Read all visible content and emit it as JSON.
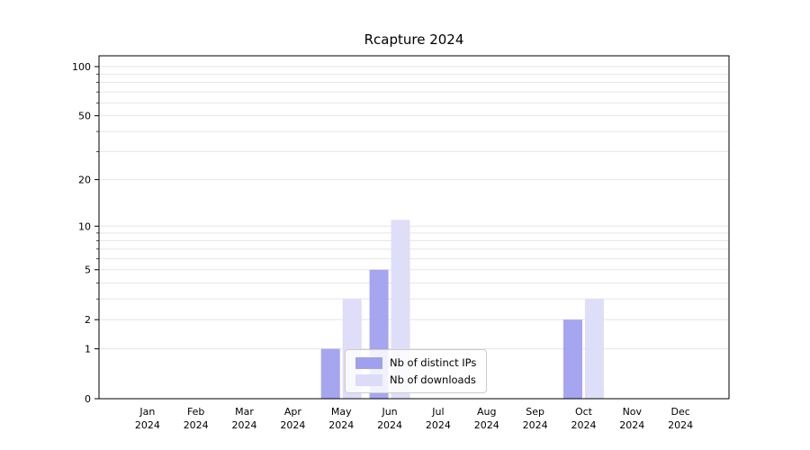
{
  "title": "Rcapture 2024",
  "chart_data": {
    "type": "bar",
    "title": "Rcapture 2024",
    "categories": [
      "Jan",
      "Feb",
      "Mar",
      "Apr",
      "May",
      "Jun",
      "Jul",
      "Aug",
      "Sep",
      "Oct",
      "Nov",
      "Dec"
    ],
    "year_label": "2024",
    "series": [
      {
        "name": "Nb of distinct IPs",
        "color": "#a0a0ef",
        "values": [
          0,
          0,
          0,
          0,
          1,
          5,
          0,
          0,
          0,
          2,
          0,
          0
        ]
      },
      {
        "name": "Nb of downloads",
        "color": "#dcdcf8",
        "values": [
          0,
          0,
          0,
          0,
          3,
          11,
          0,
          0,
          0,
          3,
          0,
          0
        ]
      }
    ],
    "xlabel": "",
    "ylabel": "",
    "y_scale": "log1p",
    "ylim": [
      0,
      117
    ],
    "y_ticks": [
      0,
      1,
      2,
      5,
      10,
      20,
      50,
      100
    ],
    "y_gridlines": [
      1,
      2,
      3,
      4,
      5,
      6,
      7,
      8,
      9,
      10,
      20,
      30,
      40,
      50,
      60,
      70,
      80,
      90,
      100
    ],
    "grid_color": "#e5e5e5",
    "axis_color": "#000000",
    "legend_position": "lower-center",
    "legend_labels": [
      "Nb of distinct IPs",
      "Nb of downloads"
    ]
  }
}
